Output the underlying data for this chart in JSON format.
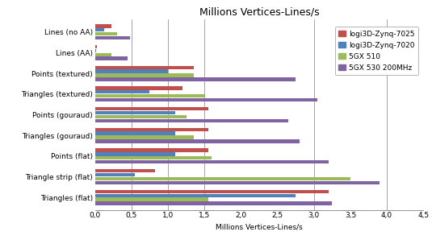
{
  "title": "Millions Vertices-Lines/s",
  "xlabel": "Millions Vertices-Lines/s",
  "categories": [
    "Lines (no AA)",
    "Lines (AA)",
    "Points (textured)",
    "Triangles (textured)",
    "Points (gouraud)",
    "Triangles (gouraud)",
    "Points (flat)",
    "Triangle strip (flat)",
    "Triangles (flat)"
  ],
  "series_names": [
    "logi3D-Zynq-7025",
    "logi3D-Zynq-7020",
    "5GX 510",
    "5GX 530 200MHz"
  ],
  "series_values": [
    [
      0.22,
      0.02,
      1.35,
      1.2,
      1.55,
      1.55,
      1.55,
      0.82,
      3.2
    ],
    [
      0.12,
      0.01,
      1.0,
      0.75,
      1.1,
      1.1,
      1.1,
      0.55,
      2.75
    ],
    [
      0.3,
      0.22,
      1.35,
      1.5,
      1.25,
      1.35,
      1.6,
      3.5,
      1.55
    ],
    [
      0.48,
      0.45,
      2.75,
      3.05,
      2.65,
      2.8,
      3.2,
      3.9,
      3.25
    ]
  ],
  "colors": [
    "#C0504D",
    "#4F81BD",
    "#9BBB59",
    "#8064A2"
  ],
  "xlim": [
    0,
    4.5
  ],
  "xticks": [
    0.0,
    0.5,
    1.0,
    1.5,
    2.0,
    2.5,
    3.0,
    3.5,
    4.0,
    4.5
  ],
  "xtick_labels": [
    "0,0",
    "0,5",
    "1,0",
    "1,5",
    "2,0",
    "2,5",
    "3,0",
    "3,5",
    "4,0",
    "4,5"
  ],
  "grid_x_positions": [
    0.5,
    1.0,
    1.5,
    3.0,
    4.0
  ],
  "title_fontsize": 9,
  "label_fontsize": 6.5,
  "tick_fontsize": 6.5,
  "legend_fontsize": 6.5,
  "bar_height": 0.17,
  "bar_spacing": 0.19
}
